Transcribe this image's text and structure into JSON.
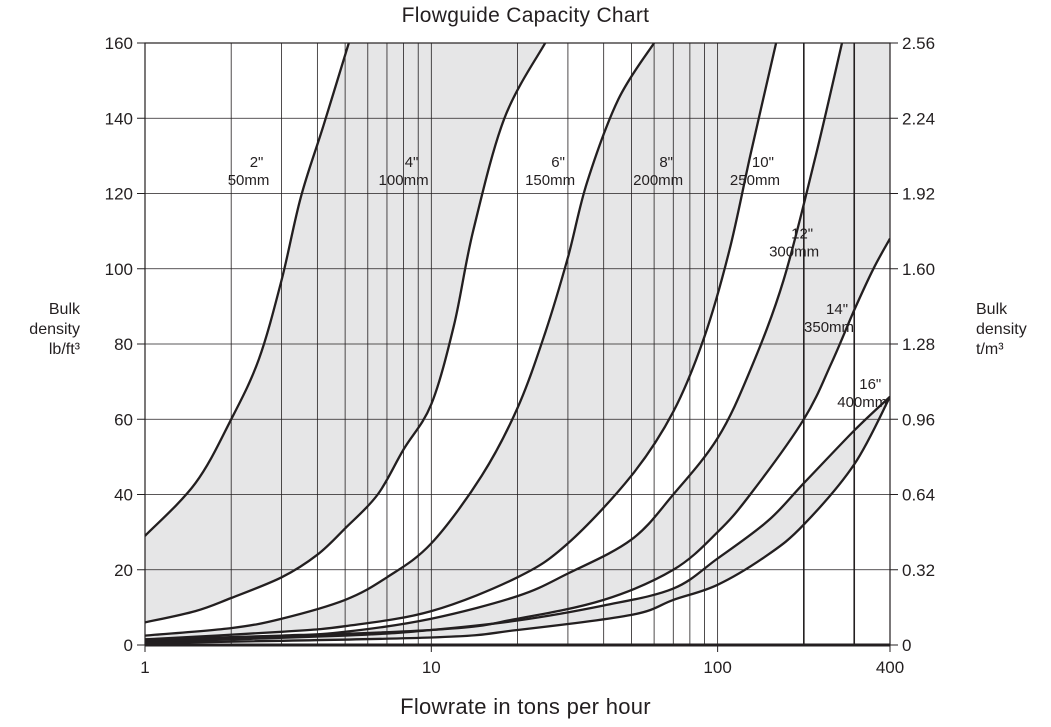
{
  "chart_data": {
    "type": "line",
    "title": "Flowguide Capacity Chart",
    "xlabel": "Flowrate in tons per hour",
    "ylabel_left": [
      "Bulk",
      "density",
      "lb/ft³"
    ],
    "ylabel_right": [
      "Bulk",
      "density",
      "t/m³"
    ],
    "x_scale": "log",
    "xlim": [
      1,
      400
    ],
    "ylim": [
      0,
      160
    ],
    "x_ticks": [
      1,
      10,
      100,
      400
    ],
    "x_minor": [
      2,
      3,
      4,
      5,
      6,
      7,
      8,
      9,
      20,
      30,
      40,
      50,
      60,
      70,
      80,
      90,
      200,
      300
    ],
    "x_bold_ticks": [
      200,
      300
    ],
    "y_ticks_left": [
      "0",
      "20",
      "40",
      "60",
      "80",
      "100",
      "120",
      "140",
      "160"
    ],
    "y_ticks_right": [
      "0",
      "0.32",
      "0.64",
      "0.96",
      "1.28",
      "1.60",
      "1.92",
      "2.24",
      "2.56"
    ],
    "grid": true,
    "band_fill": "#e6e6e7",
    "line_color": "#231f20",
    "series": [
      {
        "name": "2\" 50mm",
        "left": [
          [
            1,
            29
          ],
          [
            1.5,
            43
          ],
          [
            2,
            60
          ],
          [
            2.5,
            76
          ],
          [
            3,
            97
          ],
          [
            3.5,
            119
          ],
          [
            4.2,
            138
          ],
          [
            5.15,
            160
          ]
        ],
        "right": [
          [
            1,
            6
          ],
          [
            1.5,
            9
          ],
          [
            2,
            12.5
          ],
          [
            3,
            18
          ],
          [
            4,
            24
          ],
          [
            5,
            31
          ],
          [
            6.5,
            40
          ],
          [
            8,
            52
          ],
          [
            10,
            64
          ],
          [
            12,
            85
          ],
          [
            14,
            110
          ],
          [
            18,
            140
          ],
          [
            25,
            160
          ]
        ]
      },
      {
        "name": "4\" 100mm",
        "left": [
          [
            1,
            2.5
          ],
          [
            2,
            4.5
          ],
          [
            3,
            7
          ],
          [
            5,
            12
          ],
          [
            7,
            18
          ],
          [
            10,
            27
          ],
          [
            15,
            45
          ],
          [
            20,
            63
          ],
          [
            25,
            83
          ],
          [
            30,
            103
          ],
          [
            35,
            123
          ],
          [
            45,
            145
          ],
          [
            60,
            160
          ]
        ],
        "right": [
          [
            1,
            1.5
          ],
          [
            3,
            3.5
          ],
          [
            5,
            5
          ],
          [
            10,
            9
          ],
          [
            20,
            18
          ],
          [
            30,
            27
          ],
          [
            50,
            45
          ],
          [
            70,
            62
          ],
          [
            90,
            82
          ],
          [
            110,
            105
          ],
          [
            130,
            130
          ],
          [
            160,
            160
          ]
        ]
      },
      {
        "name": "6\" 150mm",
        "left": [
          [
            1,
            1.5
          ],
          [
            3,
            2.5
          ],
          [
            5,
            3.5
          ],
          [
            10,
            7
          ],
          [
            20,
            13
          ],
          [
            30,
            19
          ],
          [
            50,
            28
          ],
          [
            70,
            40
          ],
          [
            100,
            55
          ],
          [
            130,
            73
          ],
          [
            170,
            97
          ],
          [
            220,
            130
          ],
          [
            272,
            160
          ]
        ],
        "right": [
          [
            1,
            1
          ],
          [
            10,
            4
          ],
          [
            20,
            7
          ],
          [
            40,
            12
          ],
          [
            70,
            20
          ],
          [
            100,
            30
          ],
          [
            130,
            40
          ],
          [
            200,
            60
          ],
          [
            250,
            75
          ],
          [
            300,
            89
          ],
          [
            350,
            100
          ],
          [
            400,
            108
          ]
        ]
      },
      {
        "name": "8\" 200mm",
        "left": [
          [
            1,
            0.8
          ],
          [
            5,
            2.5
          ],
          [
            10,
            4
          ],
          [
            20,
            6.5
          ],
          [
            40,
            10.5
          ],
          [
            70,
            15
          ],
          [
            100,
            23
          ],
          [
            150,
            33
          ],
          [
            200,
            43
          ],
          [
            300,
            57
          ],
          [
            400,
            66
          ]
        ],
        "right": [
          [
            1,
            0.5
          ],
          [
            10,
            2
          ],
          [
            20,
            4
          ],
          [
            50,
            8
          ],
          [
            70,
            12
          ],
          [
            100,
            16
          ],
          [
            150,
            24
          ],
          [
            200,
            32
          ],
          [
            300,
            48
          ],
          [
            400,
            66
          ]
        ]
      }
    ],
    "curve_labels": [
      {
        "size": "2\"",
        "metric": "50mm"
      },
      {
        "size": "4\"",
        "metric": "100mm"
      },
      {
        "size": "6\"",
        "metric": "150mm"
      },
      {
        "size": "8\"",
        "metric": "200mm"
      },
      {
        "size": "10\"",
        "metric": "250mm"
      },
      {
        "size": "12\"",
        "metric": "300mm"
      },
      {
        "size": "14\"",
        "metric": "350mm"
      },
      {
        "size": "16\"",
        "metric": "400mm"
      }
    ]
  }
}
